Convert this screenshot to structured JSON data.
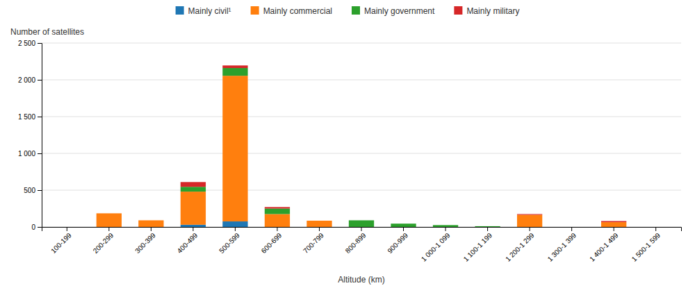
{
  "chart_data": {
    "type": "bar",
    "stacked": true,
    "x_label": "Altitude (km)",
    "y_label": "Number of satellites",
    "categories": [
      "100-199",
      "200-299",
      "300-399",
      "400-499",
      "500-599",
      "600-699",
      "700-799",
      "800-899",
      "900-999",
      "1 000-1 099",
      "1 100-1 199",
      "1 200-1 299",
      "1 300-1 399",
      "1 400-1 499",
      "1 500-1 599"
    ],
    "series": [
      {
        "name": "Mainly civil¹",
        "values": [
          0,
          0,
          0,
          30,
          75,
          0,
          0,
          0,
          0,
          0,
          0,
          0,
          0,
          0,
          0
        ]
      },
      {
        "name": "Mainly commercial",
        "values": [
          0,
          185,
          90,
          450,
          1980,
          175,
          85,
          0,
          0,
          0,
          0,
          165,
          0,
          65,
          0
        ]
      },
      {
        "name": "Mainly government",
        "values": [
          0,
          0,
          0,
          65,
          105,
          75,
          0,
          90,
          45,
          25,
          10,
          0,
          0,
          0,
          0
        ]
      },
      {
        "name": "Mainly military",
        "values": [
          0,
          0,
          0,
          65,
          35,
          20,
          0,
          0,
          0,
          0,
          0,
          10,
          0,
          15,
          0
        ]
      }
    ],
    "ylim": [
      0,
      2500
    ],
    "yticks": [
      0,
      500,
      {
        "value": 1000,
        "label": "1 000"
      },
      {
        "value": 1500,
        "label": "1 500"
      },
      {
        "value": 2000,
        "label": "2 000"
      },
      {
        "value": 2500,
        "label": "2 500"
      }
    ],
    "grid": true,
    "legend": "top"
  }
}
